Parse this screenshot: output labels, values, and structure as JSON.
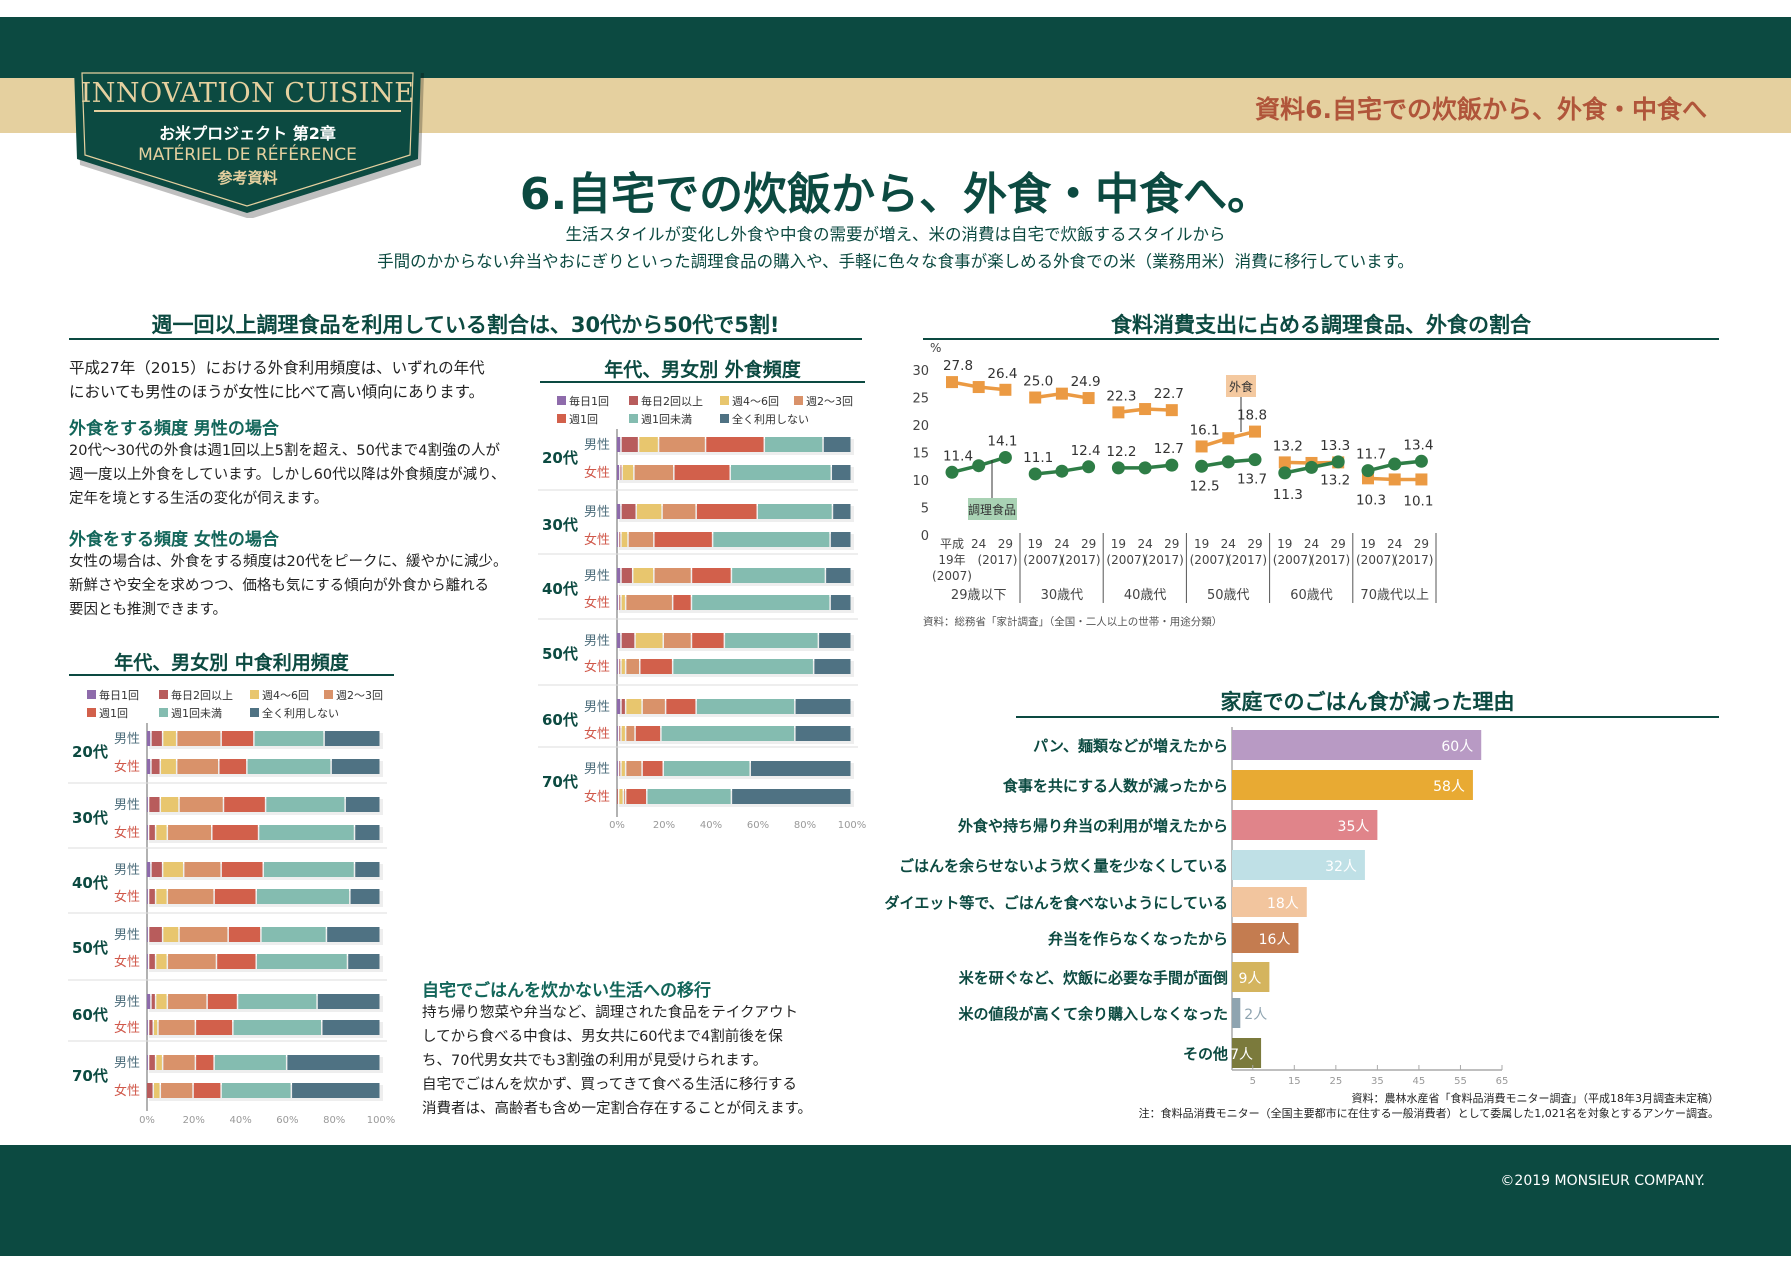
{
  "header": {
    "badge_title": "INNOVATION CUISINE",
    "badge_sub": "お米プロジェクト 第2章",
    "badge_fr": "MATÉRIEL DE RÉFÉRENCE",
    "badge_jp": "参考資料",
    "band_text": "資料6.自宅での炊飯から、外食・中食へ"
  },
  "title": "6.自宅での炊飯から、外食・中食へ。",
  "subtitle": [
    "生活スタイルが変化し外食や中食の需要が増え、米の消費は自宅で炊飯するスタイルから",
    "手間のかからない弁当やおにぎりといった調理食品の購入や、手軽に色々な食事が楽しめる外食での米（業務用米）消費に移行しています。"
  ],
  "left": {
    "heading": "週一回以上調理食品を利用している割合は、30代から50代で5割!",
    "intro": [
      "平成27年（2015）における外食利用頻度は、いずれの年代",
      "においても男性のほうが女性に比べて高い傾向にあります。"
    ],
    "men_heading": "外食をする頻度 男性の場合",
    "men_text": [
      "20代〜30代の外食は週1回以上5割を超え、50代まで4割強の人が",
      "週一度以上外食をしています。しかし60代以降は外食頻度が減り、",
      "定年を境とする生活の変化が伺えます。"
    ],
    "women_heading": "外食をする頻度 女性の場合",
    "women_text": [
      "女性の場合は、外食をする頻度は20代をピークに、緩やかに減少。",
      "新鮮さや安全を求めつつ、価格も気にする傾向が外食から離れる",
      "要因とも推測できます。"
    ],
    "shift_heading": "自宅でごはんを炊かない生活への移行",
    "shift_text": [
      "持ち帰り惣菜や弁当など、調理された食品をテイクアウト",
      "してから食べる中食は、男女共に60代まで4割前後を保",
      "ち、70代男女共でも3割強の利用が見受けられます。",
      "自宅でごはんを炊かず、買ってきて食べる生活に移行する",
      "消費者は、高齢者も含め一定割合存在することが伺えます。"
    ]
  },
  "right": {
    "line_heading": "食料消費支出に占める調理食品、外食の割合",
    "bar_heading": "家庭でのごはん食が減った理由"
  },
  "footer": {
    "copyright": "©2019 MONSIEUR COMPANY."
  },
  "chart_data": [
    {
      "type": "bar",
      "orientation": "horizontal",
      "stacked": true,
      "title": "年代、男女別 外食頻度",
      "legend": [
        "毎日1回",
        "毎日2回以上",
        "週4〜6回",
        "週2〜3回",
        "週1回",
        "週1回未満",
        "全く利用しない"
      ],
      "colors": [
        "#8e6bab",
        "#b85c5c",
        "#e8c66e",
        "#d9926a",
        "#d2604b",
        "#84bcb0",
        "#4f7283"
      ],
      "groups": [
        "20代",
        "30代",
        "40代",
        "50代",
        "60代",
        "70代"
      ],
      "subgroups": [
        "男性",
        "女性"
      ],
      "xticks": [
        "0%",
        "20%",
        "40%",
        "60%",
        "80%",
        "100%"
      ],
      "xlim": [
        0,
        100
      ],
      "values": [
        [
          2,
          7.5,
          8.5,
          20,
          25,
          25,
          12
        ],
        [
          1.5,
          1,
          5,
          17,
          24,
          43,
          8.5
        ],
        [
          2,
          6.5,
          11,
          14.5,
          26,
          32,
          8
        ],
        [
          1,
          1,
          3,
          11,
          25,
          50,
          9
        ],
        [
          2,
          5,
          9,
          16,
          17,
          40,
          11
        ],
        [
          1,
          1,
          2,
          20,
          8,
          59,
          9
        ],
        [
          2,
          6,
          12,
          12,
          14,
          40,
          14
        ],
        [
          1,
          1,
          2,
          6,
          14,
          60,
          16
        ],
        [
          2,
          2,
          7,
          10,
          13,
          42,
          24
        ],
        [
          1,
          1,
          2,
          4,
          11,
          57,
          24
        ],
        [
          1,
          1,
          2,
          7,
          9,
          37,
          43
        ],
        [
          0,
          1,
          2,
          1,
          9,
          36,
          51
        ]
      ]
    },
    {
      "type": "bar",
      "orientation": "horizontal",
      "stacked": true,
      "title": "年代、男女別 中食利用頻度",
      "legend": [
        "毎日1回",
        "毎日2回以上",
        "週4〜6回",
        "週2〜3回",
        "週1回",
        "週1回未満",
        "全く利用しない"
      ],
      "colors": [
        "#8e6bab",
        "#b85c5c",
        "#e8c66e",
        "#d9926a",
        "#d2604b",
        "#84bcb0",
        "#4f7283"
      ],
      "groups": [
        "20代",
        "30代",
        "40代",
        "50代",
        "60代",
        "70代"
      ],
      "subgroups": [
        "男性",
        "女性"
      ],
      "xticks": [
        "0%",
        "20%",
        "40%",
        "60%",
        "80%",
        "100%"
      ],
      "xlim": [
        0,
        100
      ],
      "values": [
        [
          2,
          5,
          6,
          19,
          14,
          30,
          24
        ],
        [
          2,
          4,
          7,
          18,
          12,
          36,
          21
        ],
        [
          1,
          5,
          8,
          19,
          18,
          34,
          15
        ],
        [
          1,
          3,
          5,
          19,
          20,
          41,
          11
        ],
        [
          2,
          5,
          9,
          16,
          18,
          39,
          11
        ],
        [
          1,
          3,
          5,
          20,
          18,
          40,
          13
        ],
        [
          1,
          6,
          7,
          21,
          14,
          28,
          23
        ],
        [
          1,
          3,
          5,
          21,
          17,
          39,
          14
        ],
        [
          2,
          2,
          5,
          17,
          13,
          34,
          27
        ],
        [
          1,
          2,
          2,
          16,
          16,
          38,
          25
        ],
        [
          1,
          3,
          3,
          14,
          8,
          31,
          40
        ],
        [
          0,
          3,
          3,
          14,
          12,
          30,
          38
        ]
      ]
    },
    {
      "type": "line",
      "ylabel": "%",
      "ylim": [
        0,
        30
      ],
      "yticks": [
        "0",
        "5",
        "10",
        "15",
        "20",
        "25",
        "30"
      ],
      "groups": [
        "29歳以下",
        "30歳代",
        "40歳代",
        "50歳代",
        "60歳代",
        "70歳代以上"
      ],
      "first_group_years": [
        "平成\n19年\n(2007)",
        "24",
        "29\n(2017)"
      ],
      "years": [
        "19\n(2007)",
        "24",
        "29\n(2017)"
      ],
      "series": [
        {
          "name": "外食",
          "color": "#eb9a43",
          "values": [
            [
              27.8,
              26.9,
              26.4
            ],
            [
              25.0,
              25.7,
              24.9
            ],
            [
              22.3,
              22.9,
              22.7
            ],
            [
              16.1,
              17.6,
              18.8
            ],
            [
              13.2,
              13.1,
              13.2
            ],
            [
              10.3,
              10.1,
              10.1
            ]
          ],
          "labels": [
            [
              "27.8",
              "",
              "26.4"
            ],
            [
              "25.0",
              "",
              "24.9"
            ],
            [
              "22.3",
              "",
              "22.7"
            ],
            [
              "16.1",
              "",
              "18.8"
            ],
            [
              "13.2",
              "",
              "13.2"
            ],
            [
              "10.3",
              "",
              "10.1"
            ]
          ]
        },
        {
          "name": "調理食品",
          "color": "#2e7d46",
          "values": [
            [
              11.4,
              12.6,
              14.1
            ],
            [
              11.1,
              11.6,
              12.4
            ],
            [
              12.2,
              12.2,
              12.7
            ],
            [
              12.5,
              13.3,
              13.7
            ],
            [
              11.3,
              12.3,
              13.3
            ],
            [
              11.7,
              12.9,
              13.4
            ]
          ],
          "labels": [
            [
              "11.4",
              "",
              "14.1"
            ],
            [
              "11.1",
              "",
              "12.4"
            ],
            [
              "12.2",
              "",
              "12.7"
            ],
            [
              "12.5",
              "",
              "13.7"
            ],
            [
              "11.3",
              "",
              "13.3"
            ],
            [
              "11.7",
              "",
              "13.4"
            ]
          ]
        }
      ],
      "source": "資料：総務省「家計調査」（全国・二人以上の世帯・用途分類）"
    },
    {
      "type": "bar",
      "orientation": "horizontal",
      "unit": "人",
      "categories": [
        "パン、麺類などが増えたから",
        "食事を共にする人数が減ったから",
        "外食や持ち帰り弁当の利用が増えたから",
        "ごはんを余らせないよう炊く量を少なくしている",
        "ダイエット等で、ごはんを食べないようにしている",
        "弁当を作らなくなったから",
        "米を研ぐなど、炊飯に必要な手間が面倒",
        "米の値段が高くて余り購入しなくなった",
        "その他"
      ],
      "values": [
        60,
        58,
        35,
        32,
        18,
        16,
        9,
        2,
        7
      ],
      "labels": [
        "60人",
        "58人",
        "35人",
        "32人",
        "18人",
        "16人",
        "9人",
        "2人",
        "7人"
      ],
      "colors": [
        "#b89ac4",
        "#e8aa33",
        "#e0848a",
        "#bfe0e6",
        "#f2c59e",
        "#c47c50",
        "#d4b45e",
        "#8fa4b0",
        "#7b7a3c"
      ],
      "xlim": [
        0,
        65
      ],
      "xticks": [
        "5",
        "15",
        "25",
        "35",
        "45",
        "55",
        "65"
      ],
      "source": "資料：農林水産省「食料品消費モニター調査」（平成18年3月調査未定稿）",
      "note": "注：食料品消費モニター（全国主要都市に在住する一般消費者）として委属した1,021名を対象とするアンケー調査。"
    }
  ]
}
